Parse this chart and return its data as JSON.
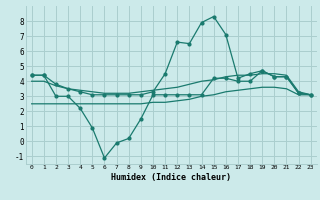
{
  "xlabel": "Humidex (Indice chaleur)",
  "background_color": "#cceaea",
  "grid_color": "#aacece",
  "line_color": "#1a7a6e",
  "xlim_min": -0.5,
  "xlim_max": 23.5,
  "ylim_min": -1.5,
  "ylim_max": 9.0,
  "yticks": [
    -1,
    0,
    1,
    2,
    3,
    4,
    5,
    6,
    7,
    8
  ],
  "xticks": [
    0,
    1,
    2,
    3,
    4,
    5,
    6,
    7,
    8,
    9,
    10,
    11,
    12,
    13,
    14,
    15,
    16,
    17,
    18,
    19,
    20,
    21,
    22,
    23
  ],
  "series1_x": [
    0,
    1,
    2,
    3,
    4,
    5,
    6,
    7,
    8,
    9,
    10,
    11,
    12,
    13,
    14,
    15,
    16,
    17,
    18,
    19,
    20,
    21,
    22,
    23
  ],
  "series1_y": [
    4.4,
    4.4,
    3.0,
    3.0,
    2.2,
    0.9,
    -1.1,
    -0.1,
    0.2,
    1.5,
    3.1,
    3.1,
    3.1,
    3.1,
    3.1,
    4.2,
    4.2,
    4.0,
    4.0,
    4.7,
    4.3,
    4.3,
    3.2,
    3.1
  ],
  "series2_x": [
    0,
    1,
    2,
    3,
    4,
    5,
    6,
    7,
    8,
    9,
    10,
    11,
    12,
    13,
    14,
    15,
    16,
    17,
    18,
    19,
    20,
    21,
    22,
    23
  ],
  "series2_y": [
    4.4,
    4.4,
    3.8,
    3.5,
    3.3,
    3.1,
    3.1,
    3.1,
    3.1,
    3.1,
    3.3,
    4.5,
    6.6,
    6.5,
    7.9,
    8.3,
    7.1,
    4.2,
    4.5,
    4.7,
    4.3,
    4.3,
    3.2,
    3.1
  ],
  "series3_x": [
    0,
    1,
    2,
    3,
    4,
    5,
    6,
    7,
    8,
    9,
    10,
    11,
    12,
    13,
    14,
    15,
    16,
    17,
    18,
    19,
    20,
    21,
    22,
    23
  ],
  "series3_y": [
    4.0,
    4.0,
    3.7,
    3.5,
    3.4,
    3.3,
    3.2,
    3.2,
    3.2,
    3.3,
    3.4,
    3.5,
    3.6,
    3.8,
    4.0,
    4.1,
    4.3,
    4.4,
    4.4,
    4.5,
    4.5,
    4.4,
    3.3,
    3.1
  ],
  "series4_x": [
    0,
    1,
    2,
    3,
    4,
    5,
    6,
    7,
    8,
    9,
    10,
    11,
    12,
    13,
    14,
    15,
    16,
    17,
    18,
    19,
    20,
    21,
    22,
    23
  ],
  "series4_y": [
    2.5,
    2.5,
    2.5,
    2.5,
    2.5,
    2.5,
    2.5,
    2.5,
    2.5,
    2.5,
    2.6,
    2.6,
    2.7,
    2.8,
    3.0,
    3.1,
    3.3,
    3.4,
    3.5,
    3.6,
    3.6,
    3.5,
    3.1,
    3.1
  ]
}
